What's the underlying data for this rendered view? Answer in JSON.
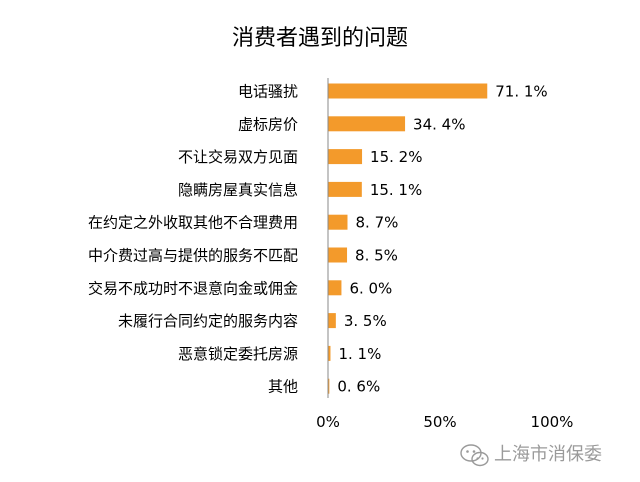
{
  "chart_data": {
    "type": "bar",
    "orientation": "horizontal",
    "title": "消费者遇到的问题",
    "categories": [
      "电话骚扰",
      "虚标房价",
      "不让交易双方见面",
      "隐瞒房屋真实信息",
      "在约定之外收取其他不合理费用",
      "中介费过高与提供的服务不匹配",
      "交易不成功时不退意向金或佣金",
      "未履行合同约定的服务内容",
      "恶意锁定委托房源",
      "其他"
    ],
    "values": [
      71.1,
      34.4,
      15.2,
      15.1,
      8.7,
      8.5,
      6.0,
      3.5,
      1.1,
      0.6
    ],
    "value_labels": [
      "71. 1%",
      "34. 4%",
      "15. 2%",
      "15. 1%",
      "8. 7%",
      "8. 5%",
      "6. 0%",
      "3. 5%",
      "1. 1%",
      "0. 6%"
    ],
    "xlim": [
      0,
      100
    ],
    "x_ticks": [
      "0%",
      "50%",
      "100%"
    ],
    "xlabel": "",
    "ylabel": "",
    "bar_color": "#f39a2b",
    "grid": false,
    "legend": false
  },
  "watermark": {
    "icon": "wechat-icon",
    "text": "上海市消保委"
  }
}
